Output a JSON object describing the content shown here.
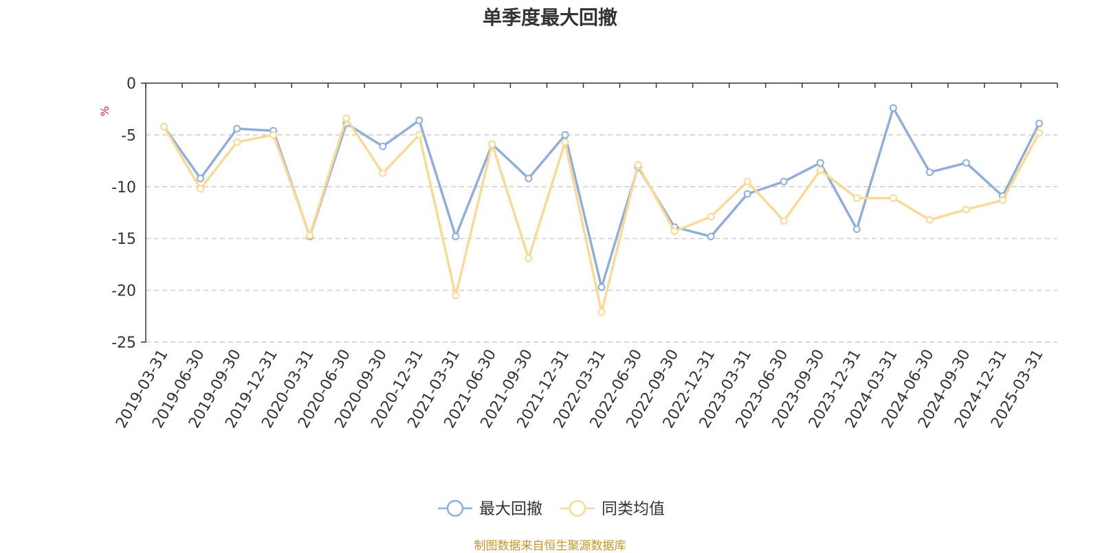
{
  "chart_data": {
    "type": "line",
    "title": "单季度最大回撤",
    "ylabel": "%",
    "ylim": [
      -25,
      0
    ],
    "yticks": [
      0,
      -5,
      -10,
      -15,
      -20,
      -25
    ],
    "grid": true,
    "legend_position": "bottom",
    "categories": [
      "2019-03-31",
      "2019-06-30",
      "2019-09-30",
      "2019-12-31",
      "2020-03-31",
      "2020-06-30",
      "2020-09-30",
      "2020-12-31",
      "2021-03-31",
      "2021-06-30",
      "2021-09-30",
      "2021-12-31",
      "2022-03-31",
      "2022-06-30",
      "2022-09-30",
      "2022-12-31",
      "2023-03-31",
      "2023-06-30",
      "2023-09-30",
      "2023-12-31",
      "2024-03-31",
      "2024-06-30",
      "2024-09-30",
      "2024-12-31",
      "2025-03-31"
    ],
    "series": [
      {
        "name": "最大回撤",
        "color": "#8eaedb",
        "values": [
          -4.2,
          -9.2,
          -4.4,
          -4.6,
          -14.8,
          -3.9,
          -6.1,
          -3.6,
          -14.8,
          -5.9,
          -9.2,
          -5.0,
          -19.7,
          -8.1,
          -13.9,
          -14.8,
          -10.7,
          -9.5,
          -7.7,
          -14.1,
          -2.4,
          -8.6,
          -7.7,
          -10.9,
          -3.9
        ]
      },
      {
        "name": "同类均值",
        "color": "#fbd994",
        "values": [
          -4.2,
          -10.2,
          -5.7,
          -5.0,
          -14.7,
          -3.4,
          -8.7,
          -5.0,
          -20.5,
          -5.9,
          -16.9,
          -5.7,
          -22.1,
          -7.9,
          -14.3,
          -12.9,
          -9.5,
          -13.3,
          -8.4,
          -11.1,
          -11.1,
          -13.2,
          -12.2,
          -11.3,
          -4.8
        ]
      }
    ]
  },
  "footer": {
    "source": "制图数据来自恒生聚源数据库"
  }
}
